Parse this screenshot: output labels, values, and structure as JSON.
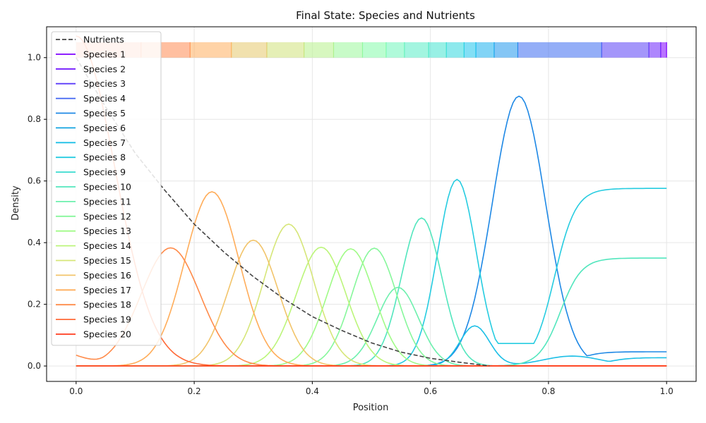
{
  "chart_data": {
    "type": "line",
    "title": "Final State: Species and Nutrients",
    "xlabel": "Position",
    "ylabel": "Density",
    "xlim": [
      -0.05,
      1.05
    ],
    "ylim": [
      -0.05,
      1.1
    ],
    "xticks": [
      "0.0",
      "0.2",
      "0.4",
      "0.6",
      "0.8",
      "1.0"
    ],
    "xtick_values": [
      0.0,
      0.2,
      0.4,
      0.6,
      0.8,
      1.0
    ],
    "yticks": [
      "0.0",
      "0.2",
      "0.4",
      "0.6",
      "0.8",
      "1.0"
    ],
    "ytick_values": [
      0.0,
      0.2,
      0.4,
      0.6,
      0.8,
      1.0
    ],
    "grid": true,
    "legend_position": "upper-left",
    "nutrients": {
      "name": "Nutrients",
      "color": "#444444",
      "style": "dashed",
      "x": [
        0.0,
        0.05,
        0.1,
        0.15,
        0.2,
        0.25,
        0.3,
        0.35,
        0.4,
        0.45,
        0.5,
        0.55,
        0.6,
        0.65,
        0.7
      ],
      "y": [
        1.0,
        0.84,
        0.69,
        0.57,
        0.46,
        0.37,
        0.29,
        0.22,
        0.16,
        0.115,
        0.075,
        0.045,
        0.025,
        0.012,
        0.0
      ]
    },
    "series": [
      {
        "name": "Species 1",
        "color": "#7f00ff",
        "peaks": [],
        "baseline": 0
      },
      {
        "name": "Species 2",
        "color": "#7116fe",
        "peaks": [],
        "baseline": 0
      },
      {
        "name": "Species 3",
        "color": "#5b3af9",
        "peaks": [],
        "baseline": 0
      },
      {
        "name": "Species 4",
        "color": "#3e62f1",
        "peaks": [],
        "baseline": 0
      },
      {
        "name": "Species 5",
        "color": "#1e88e5",
        "peaks": [
          [
            0.75,
            0.875,
            0.045
          ]
        ],
        "baseline": 0,
        "tail_after": 0.85,
        "tail": 0.046
      },
      {
        "name": "Species 6",
        "color": "#12a3e0",
        "peaks": [],
        "baseline": 0
      },
      {
        "name": "Species 7",
        "color": "#1cbfe6",
        "peaks": [
          [
            0.675,
            0.13,
            0.025
          ],
          [
            0.84,
            0.032,
            0.05
          ]
        ],
        "baseline": 0,
        "tail_after": 0.9,
        "tail": 0.027
      },
      {
        "name": "Species 8",
        "color": "#26cce0",
        "peaks": [
          [
            0.645,
            0.605,
            0.033
          ]
        ],
        "baseline": 0,
        "tail_after": 0.81,
        "tail": 0.576,
        "valley": [
          0.755,
          0.073
        ]
      },
      {
        "name": "Species 9",
        "color": "#3adbcf",
        "peaks": [],
        "baseline": 0
      },
      {
        "name": "Species 10",
        "color": "#52e6bd",
        "peaks": [
          [
            0.585,
            0.48,
            0.034
          ]
        ],
        "baseline": 0,
        "tail_after": 0.82,
        "tail": 0.35
      },
      {
        "name": "Species 11",
        "color": "#6cf0ad",
        "peaks": [
          [
            0.545,
            0.255,
            0.035
          ]
        ],
        "baseline": 0
      },
      {
        "name": "Species 12",
        "color": "#86f79b",
        "peaks": [
          [
            0.505,
            0.382,
            0.038
          ]
        ],
        "baseline": 0
      },
      {
        "name": "Species 13",
        "color": "#a0fb87",
        "peaks": [
          [
            0.465,
            0.38,
            0.04
          ]
        ],
        "baseline": 0
      },
      {
        "name": "Species 14",
        "color": "#bcf57a",
        "peaks": [
          [
            0.415,
            0.385,
            0.042
          ]
        ],
        "baseline": 0
      },
      {
        "name": "Species 15",
        "color": "#d6e678",
        "peaks": [
          [
            0.36,
            0.46,
            0.042
          ]
        ],
        "baseline": 0
      },
      {
        "name": "Species 16",
        "color": "#f2c46a",
        "peaks": [
          [
            0.3,
            0.408,
            0.042
          ]
        ],
        "baseline": 0
      },
      {
        "name": "Species 17",
        "color": "#ffad5a",
        "peaks": [
          [
            0.23,
            0.565,
            0.046
          ]
        ],
        "baseline": 0
      },
      {
        "name": "Species 18",
        "color": "#ff8b4a",
        "peaks": [
          [
            0.16,
            0.383,
            0.05
          ]
        ],
        "baseline": 0,
        "start": 0.035
      },
      {
        "name": "Species 19",
        "color": "#ff6a38",
        "peaks": [
          [
            0.0,
            1.07,
            0.065
          ]
        ],
        "baseline": 0
      },
      {
        "name": "Species 20",
        "color": "#ff3b1f",
        "peaks": [],
        "baseline": 0
      }
    ],
    "territory_bands": [
      {
        "x0": 0.0,
        "x1": 0.11,
        "color": "#ff7a4a"
      },
      {
        "x0": 0.11,
        "x1": 0.193,
        "color": "#ff8a52"
      },
      {
        "x0": 0.193,
        "x1": 0.263,
        "color": "#ffae5e"
      },
      {
        "x0": 0.263,
        "x1": 0.323,
        "color": "#e6c86c"
      },
      {
        "x0": 0.323,
        "x1": 0.386,
        "color": "#cfe27a"
      },
      {
        "x0": 0.386,
        "x1": 0.436,
        "color": "#b6f08a"
      },
      {
        "x0": 0.436,
        "x1": 0.485,
        "color": "#9af79a"
      },
      {
        "x0": 0.485,
        "x1": 0.525,
        "color": "#84fbaa"
      },
      {
        "x0": 0.525,
        "x1": 0.556,
        "color": "#6ff5bc"
      },
      {
        "x0": 0.556,
        "x1": 0.597,
        "color": "#58ecc6"
      },
      {
        "x0": 0.597,
        "x1": 0.627,
        "color": "#43e4cf"
      },
      {
        "x0": 0.627,
        "x1": 0.657,
        "color": "#2fd7de"
      },
      {
        "x0": 0.657,
        "x1": 0.677,
        "color": "#1cc4ec"
      },
      {
        "x0": 0.677,
        "x1": 0.708,
        "color": "#19b0ee"
      },
      {
        "x0": 0.708,
        "x1": 0.748,
        "color": "#1f98ec"
      },
      {
        "x0": 0.748,
        "x1": 0.89,
        "color": "#3c6cf0"
      },
      {
        "x0": 0.89,
        "x1": 0.97,
        "color": "#5a40f6"
      },
      {
        "x0": 0.97,
        "x1": 0.99,
        "color": "#6b22fb"
      },
      {
        "x0": 0.99,
        "x1": 1.0,
        "color": "#7f00ff"
      }
    ]
  },
  "legend": {
    "items": [
      "Nutrients",
      "Species 1",
      "Species 2",
      "Species 3",
      "Species 4",
      "Species 5",
      "Species 6",
      "Species 7",
      "Species 8",
      "Species 9",
      "Species 10",
      "Species 11",
      "Species 12",
      "Species 13",
      "Species 14",
      "Species 15",
      "Species 16",
      "Species 17",
      "Species 18",
      "Species 19",
      "Species 20"
    ]
  }
}
